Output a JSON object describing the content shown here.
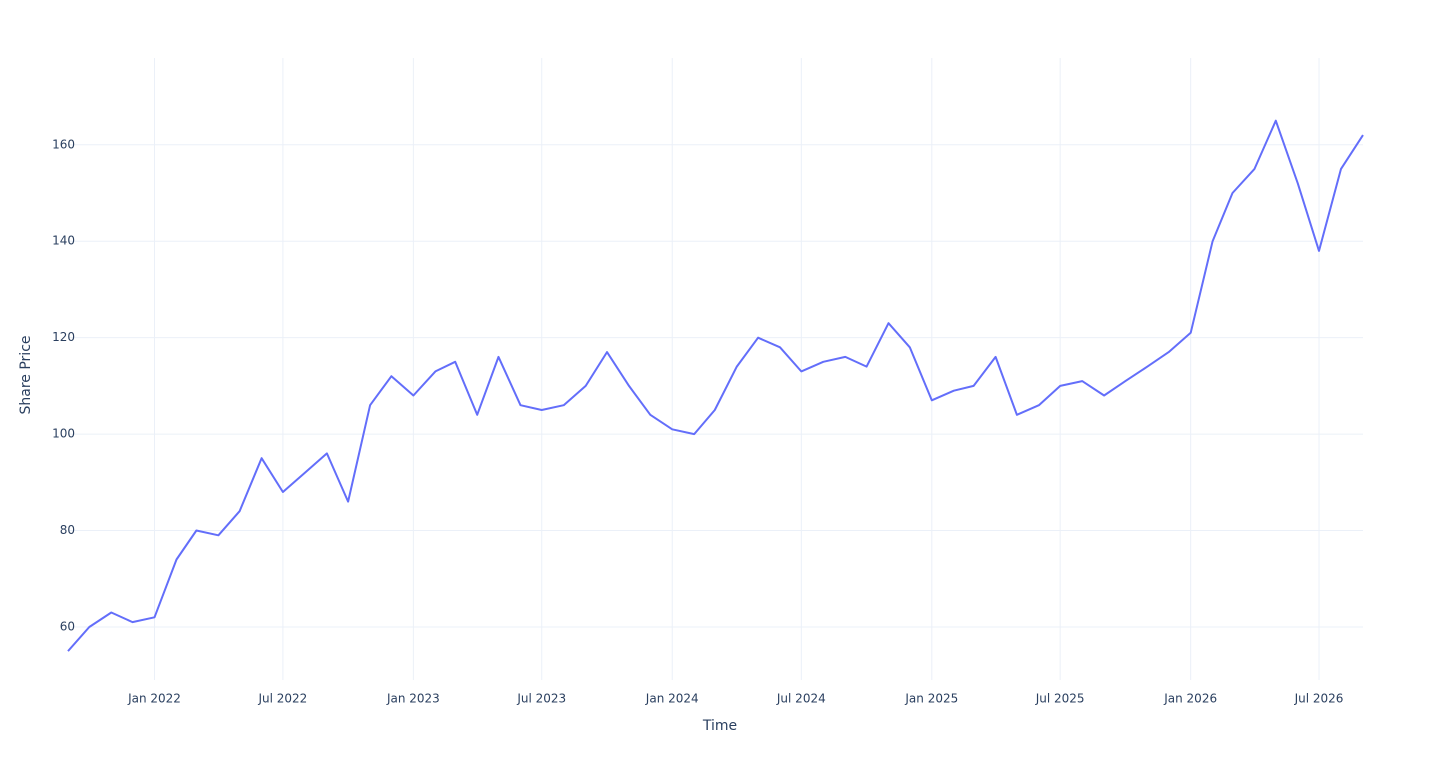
{
  "chart_data": {
    "type": "line",
    "x_label": "Time",
    "y_label": "Share Price",
    "x": [
      "2021-09",
      "2021-10",
      "2021-11",
      "2021-12",
      "2022-01",
      "2022-02",
      "2022-03",
      "2022-04",
      "2022-05",
      "2022-06",
      "2022-07",
      "2022-08",
      "2022-09",
      "2022-10",
      "2022-11",
      "2022-12",
      "2023-01",
      "2023-02",
      "2023-03",
      "2023-04",
      "2023-05",
      "2023-06",
      "2023-07",
      "2023-08",
      "2023-09",
      "2023-10",
      "2023-11",
      "2023-12",
      "2024-01",
      "2024-02",
      "2024-03",
      "2024-04",
      "2024-05",
      "2024-06",
      "2024-07",
      "2024-08",
      "2024-09",
      "2024-10",
      "2024-11",
      "2024-12",
      "2025-01",
      "2025-02",
      "2025-03",
      "2025-04",
      "2025-05",
      "2025-06",
      "2025-07",
      "2025-08",
      "2025-09",
      "2025-10",
      "2025-11",
      "2025-12",
      "2026-01",
      "2026-02",
      "2026-03",
      "2026-04",
      "2026-05",
      "2026-06",
      "2026-07",
      "2026-08",
      "2026-09"
    ],
    "series": [
      {
        "name": "Share Price",
        "color": "#636efa",
        "values": [
          55,
          60,
          63,
          61,
          62,
          74,
          80,
          79,
          84,
          95,
          88,
          92,
          96,
          86,
          106,
          112,
          108,
          113,
          115,
          104,
          116,
          106,
          105,
          106,
          110,
          117,
          110,
          104,
          101,
          100,
          105,
          114,
          120,
          118,
          113,
          115,
          116,
          114,
          123,
          118,
          107,
          109,
          110,
          116,
          104,
          106,
          110,
          111,
          108,
          111,
          114,
          117,
          121,
          140,
          150,
          155,
          165,
          152,
          138,
          155,
          162
        ]
      }
    ],
    "xlim": [
      "2021-09",
      "2026-09"
    ],
    "xticks": [
      {
        "value": "2022-01",
        "label": "Jan 2022"
      },
      {
        "value": "2022-07",
        "label": "Jul 2022"
      },
      {
        "value": "2023-01",
        "label": "Jan 2023"
      },
      {
        "value": "2023-07",
        "label": "Jul 2023"
      },
      {
        "value": "2024-01",
        "label": "Jan 2024"
      },
      {
        "value": "2024-07",
        "label": "Jul 2024"
      },
      {
        "value": "2025-01",
        "label": "Jan 2025"
      },
      {
        "value": "2025-07",
        "label": "Jul 2025"
      },
      {
        "value": "2026-01",
        "label": "Jan 2026"
      },
      {
        "value": "2026-07",
        "label": "Jul 2026"
      }
    ],
    "ylim": [
      49,
      178
    ],
    "yticks": [
      60,
      80,
      100,
      120,
      140,
      160
    ],
    "grid": true
  }
}
